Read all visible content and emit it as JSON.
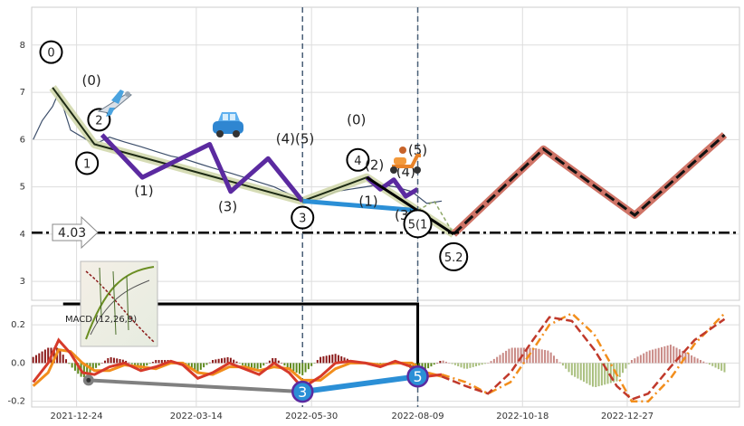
{
  "chart_data": [
    {
      "type": "line",
      "panel": "price",
      "ylim": [
        2.6,
        8.8
      ],
      "yticks": [
        3,
        4,
        5,
        6,
        7,
        8
      ],
      "x_range": [
        "2021-11-24",
        "2023-03-12"
      ],
      "xticks": [
        "2021-12-24",
        "2022-03-14",
        "2022-05-30",
        "2022-08-09",
        "2022-10-18",
        "2022-12-27"
      ],
      "price_series": {
        "name": "price",
        "x": [
          "2021-11-25",
          "2021-12-01",
          "2021-12-08",
          "2021-12-12",
          "2021-12-20",
          "2021-12-28",
          "2022-01-05",
          "2022-01-15",
          "2022-01-25",
          "2022-02-05",
          "2022-02-15",
          "2022-02-25",
          "2022-03-05",
          "2022-03-15",
          "2022-03-25",
          "2022-04-05",
          "2022-04-15",
          "2022-04-25",
          "2022-05-05",
          "2022-05-15",
          "2022-05-25",
          "2022-06-05",
          "2022-06-15",
          "2022-06-25",
          "2022-07-05",
          "2022-07-15",
          "2022-07-25",
          "2022-08-05",
          "2022-08-15",
          "2022-08-25"
        ],
        "values": [
          6.0,
          6.4,
          6.7,
          7.0,
          6.2,
          6.05,
          5.9,
          6.05,
          5.95,
          5.85,
          5.75,
          5.65,
          5.6,
          5.5,
          5.4,
          5.3,
          5.2,
          5.1,
          5.0,
          4.85,
          4.7,
          4.75,
          4.9,
          4.95,
          5.0,
          5.05,
          5.0,
          4.9,
          4.65,
          4.7
        ]
      },
      "wave_main": {
        "x": [
          "2021-12-08",
          "2022-01-05",
          "2022-05-24",
          "2022-07-06",
          "2022-09-02"
        ],
        "y": [
          7.1,
          5.9,
          4.7,
          5.2,
          4.0
        ]
      },
      "wave_sub": {
        "x": [
          "2022-01-10",
          "2022-02-06",
          "2022-03-23",
          "2022-04-06",
          "2022-05-01",
          "2022-05-24"
        ],
        "y": [
          6.1,
          5.2,
          5.9,
          4.9,
          5.6,
          4.7
        ]
      },
      "wave_sub2": {
        "x": [
          "2022-07-06",
          "2022-07-15",
          "2022-07-24",
          "2022-08-01",
          "2022-08-09"
        ],
        "y": [
          5.2,
          4.95,
          5.15,
          4.8,
          4.95
        ]
      },
      "wave_blue": {
        "x": [
          "2022-05-24",
          "2022-08-09"
        ],
        "y": [
          4.7,
          4.5
        ]
      },
      "wave_dashed": {
        "x": [
          "2022-08-09",
          "2022-08-20",
          "2022-09-02"
        ],
        "y": [
          4.5,
          4.7,
          4.0
        ]
      },
      "projection": {
        "x": [
          "2022-09-02",
          "2022-11-01",
          "2023-01-01",
          "2023-03-02"
        ],
        "y": [
          4.0,
          5.8,
          4.4,
          6.1
        ]
      },
      "hline": {
        "value": 4.03,
        "label": "4.03"
      },
      "vlines": [
        "2022-05-24",
        "2022-08-09"
      ],
      "wave_labels": [
        {
          "text": "0",
          "x": "2021-12-07",
          "y": 7.85,
          "circled": true
        },
        {
          "text": "(0)",
          "x": "2022-01-03",
          "y": 7.25,
          "circled": false
        },
        {
          "text": "2",
          "x": "2022-01-08",
          "y": 6.42,
          "circled": true
        },
        {
          "text": "1",
          "x": "2021-12-31",
          "y": 5.5,
          "circled": true
        },
        {
          "text": "(1)",
          "x": "2022-02-07",
          "y": 4.92,
          "circled": false
        },
        {
          "text": "(3)",
          "x": "2022-04-04",
          "y": 4.58,
          "circled": false
        },
        {
          "text": "(4)(5)",
          "x": "2022-05-19",
          "y": 6.02,
          "circled": false
        },
        {
          "text": "3",
          "x": "2022-05-24",
          "y": 4.35,
          "circled": true
        },
        {
          "text": "(0)",
          "x": "2022-06-29",
          "y": 6.42,
          "circled": false
        },
        {
          "text": "4",
          "x": "2022-06-30",
          "y": 5.57,
          "circled": true
        },
        {
          "text": "(2)",
          "x": "2022-07-11",
          "y": 5.46,
          "circled": false
        },
        {
          "text": "(1)",
          "x": "2022-07-07",
          "y": 4.7,
          "circled": false
        },
        {
          "text": "(4)",
          "x": "2022-08-01",
          "y": 5.32,
          "circled": false
        },
        {
          "text": "(5)",
          "x": "2022-08-09",
          "y": 5.78,
          "circled": false
        },
        {
          "text": "(3)",
          "x": "2022-07-31",
          "y": 4.4,
          "circled": false
        },
        {
          "text": "5(1",
          "x": "2022-08-09",
          "y": 4.22,
          "circled": true
        },
        {
          "text": "5.2",
          "x": "2022-09-02",
          "y": 3.52,
          "circled": true
        }
      ],
      "icons": [
        "airplane-icon",
        "car-icon",
        "scooter-icon"
      ]
    },
    {
      "type": "line",
      "panel": "macd",
      "title": "MACD (12,26,9)",
      "ylim": [
        -0.23,
        0.3
      ],
      "yticks": [
        0.2,
        0.0,
        -0.2
      ],
      "macd_line": {
        "x": [
          "2021-11-25",
          "2021-12-05",
          "2021-12-12",
          "2021-12-20",
          "2021-12-28",
          "2022-01-05",
          "2022-01-15",
          "2022-01-25",
          "2022-02-05",
          "2022-02-15",
          "2022-02-25",
          "2022-03-05",
          "2022-03-15",
          "2022-03-25",
          "2022-04-05",
          "2022-04-15",
          "2022-04-25",
          "2022-05-05",
          "2022-05-15",
          "2022-05-24",
          "2022-06-05",
          "2022-06-15",
          "2022-06-25",
          "2022-07-05",
          "2022-07-15",
          "2022-07-25",
          "2022-08-05",
          "2022-08-15",
          "2022-08-25"
        ],
        "values": [
          -0.1,
          0.0,
          0.12,
          0.05,
          -0.05,
          -0.06,
          -0.02,
          0.0,
          -0.04,
          -0.02,
          0.01,
          -0.01,
          -0.08,
          -0.05,
          0.0,
          -0.03,
          -0.06,
          0.0,
          -0.05,
          -0.13,
          -0.07,
          0.0,
          0.01,
          0.0,
          -0.02,
          0.01,
          -0.02,
          -0.07,
          -0.06
        ]
      },
      "signal_line": {
        "x": [
          "2021-11-25",
          "2021-12-05",
          "2021-12-12",
          "2021-12-20",
          "2021-12-28",
          "2022-01-05",
          "2022-01-15",
          "2022-01-25",
          "2022-02-05",
          "2022-02-15",
          "2022-02-25",
          "2022-03-05",
          "2022-03-15",
          "2022-03-25",
          "2022-04-05",
          "2022-04-15",
          "2022-04-25",
          "2022-05-05",
          "2022-05-15",
          "2022-05-24",
          "2022-06-05",
          "2022-06-15",
          "2022-06-25",
          "2022-07-05",
          "2022-07-15",
          "2022-07-25",
          "2022-08-05",
          "2022-08-15",
          "2022-08-25"
        ],
        "values": [
          -0.12,
          -0.05,
          0.07,
          0.06,
          0.0,
          -0.04,
          -0.04,
          -0.01,
          -0.02,
          -0.03,
          0.0,
          0.0,
          -0.05,
          -0.06,
          -0.02,
          -0.02,
          -0.04,
          -0.02,
          -0.03,
          -0.09,
          -0.09,
          -0.03,
          0.0,
          0.0,
          -0.01,
          0.0,
          0.0,
          -0.05,
          -0.07
        ]
      },
      "proj_macd": {
        "x": [
          "2022-08-25",
          "2022-09-10",
          "2022-09-25",
          "2022-10-10",
          "2022-10-25",
          "2022-11-05",
          "2022-11-20",
          "2022-12-05",
          "2022-12-20",
          "2022-12-30",
          "2023-01-10",
          "2023-01-25",
          "2023-02-10",
          "2023-03-02"
        ],
        "values": [
          -0.07,
          -0.12,
          -0.16,
          -0.05,
          0.12,
          0.24,
          0.22,
          0.07,
          -0.12,
          -0.19,
          -0.16,
          -0.02,
          0.12,
          0.23
        ]
      },
      "proj_signal": {
        "x": [
          "2022-08-25",
          "2022-09-10",
          "2022-09-25",
          "2022-10-10",
          "2022-10-25",
          "2022-11-05",
          "2022-11-20",
          "2022-12-05",
          "2022-12-20",
          "2022-12-30",
          "2023-01-10",
          "2023-01-25",
          "2023-02-10",
          "2023-03-02"
        ],
        "values": [
          -0.06,
          -0.1,
          -0.16,
          -0.1,
          0.07,
          0.2,
          0.26,
          0.15,
          -0.06,
          -0.2,
          -0.2,
          -0.08,
          0.1,
          0.26
        ]
      },
      "divergence_grey": {
        "x": [
          "2022-01-01",
          "2022-05-24"
        ],
        "y": [
          -0.09,
          -0.15
        ]
      },
      "divergence_blue": {
        "x": [
          "2022-05-24",
          "2022-08-09"
        ],
        "y": [
          -0.15,
          -0.07
        ]
      },
      "markers": [
        {
          "text": "3",
          "x": "2022-05-24",
          "y": -0.15
        },
        {
          "text": "5",
          "x": "2022-08-09",
          "y": -0.07
        }
      ]
    }
  ]
}
